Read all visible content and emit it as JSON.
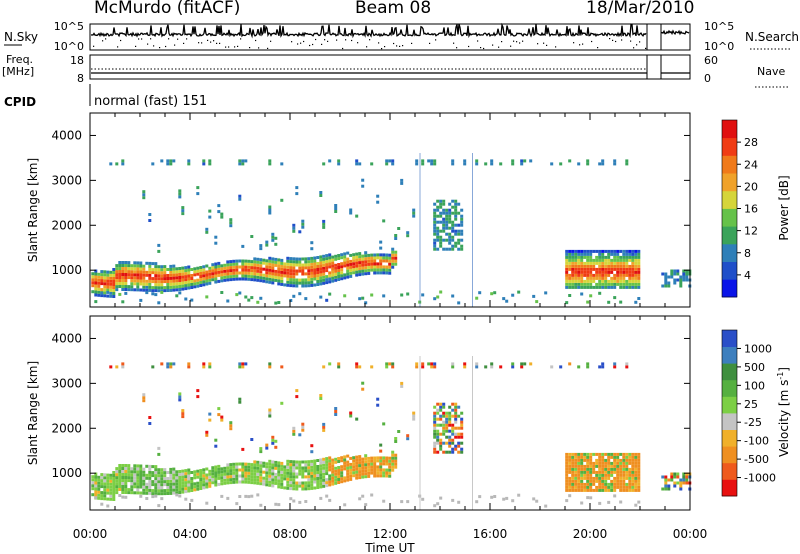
{
  "header": {
    "station": "McMurdo (fitACF)",
    "beam": "Beam 08",
    "date": "18/Mar/2010"
  },
  "status_panel": {
    "nsky_label": "N.Sky",
    "nsky_ticks": [
      "10^5",
      "10^0"
    ],
    "nsearch_label": "N.Search",
    "nsearch_ticks": [
      "10^5",
      "10^0"
    ],
    "freq_label_1": "Freq.",
    "freq_label_2": "[MHz]",
    "freq_ticks": [
      "18",
      "8"
    ],
    "nave_label": "Nave",
    "nave_ticks": [
      "60",
      "0"
    ],
    "cpid_label": "CPID",
    "cpid_value": "normal (fast) 151"
  },
  "chart_data": [
    {
      "type": "heatmap",
      "name": "power",
      "xlabel": "",
      "ylabel": "Slant Range [km]",
      "x_ticks": [
        "00:00",
        "04:00",
        "08:00",
        "12:00",
        "16:00",
        "20:00",
        "00:00"
      ],
      "xlim_hours": [
        0,
        24
      ],
      "y_ticks": [
        1000,
        2000,
        3000,
        4000
      ],
      "ylim": [
        180,
        4500
      ],
      "colorbar": {
        "label": "Power [dB]",
        "ticks": [
          4,
          8,
          12,
          16,
          20,
          24,
          28
        ],
        "range": [
          0,
          32
        ],
        "colors": [
          "#0a14e8",
          "#1f4fc9",
          "#2e7fb8",
          "#3aa35a",
          "#66c24a",
          "#d5d53a",
          "#f0a22a",
          "#f07a1a",
          "#f03c14",
          "#e01010"
        ]
      },
      "features": [
        {
          "desc": "main band",
          "start_h": 0.0,
          "end_h": 12.2,
          "center_km": [
            750,
            850,
            1000,
            1150,
            1300
          ],
          "power_db": 20
        },
        {
          "desc": "late band",
          "start_h": 18.9,
          "end_h": 22.0,
          "center_km": 1000,
          "power_db": 22
        },
        {
          "desc": "end band",
          "start_h": 22.8,
          "end_h": 24.0,
          "center_km": 900,
          "power_db": 8
        }
      ]
    },
    {
      "type": "heatmap",
      "name": "velocity",
      "xlabel": "Time UT",
      "ylabel": "Slant Range [km]",
      "x_ticks": [
        "00:00",
        "04:00",
        "08:00",
        "12:00",
        "16:00",
        "20:00",
        "00:00"
      ],
      "xlim_hours": [
        0,
        24
      ],
      "y_ticks": [
        1000,
        2000,
        3000,
        4000
      ],
      "ylim": [
        180,
        4500
      ],
      "colorbar": {
        "label": "Velocity [m s^-1]",
        "ticks": [
          1000,
          500,
          100,
          25,
          -25,
          -100,
          -500,
          -1000
        ],
        "colors": [
          "#2a4fc8",
          "#3d7fbe",
          "#3f8f3f",
          "#55b040",
          "#7ccf45",
          "#c4c4c4",
          "#f0b02a",
          "#ef8f20",
          "#ef5a1c",
          "#e81010"
        ]
      }
    }
  ]
}
